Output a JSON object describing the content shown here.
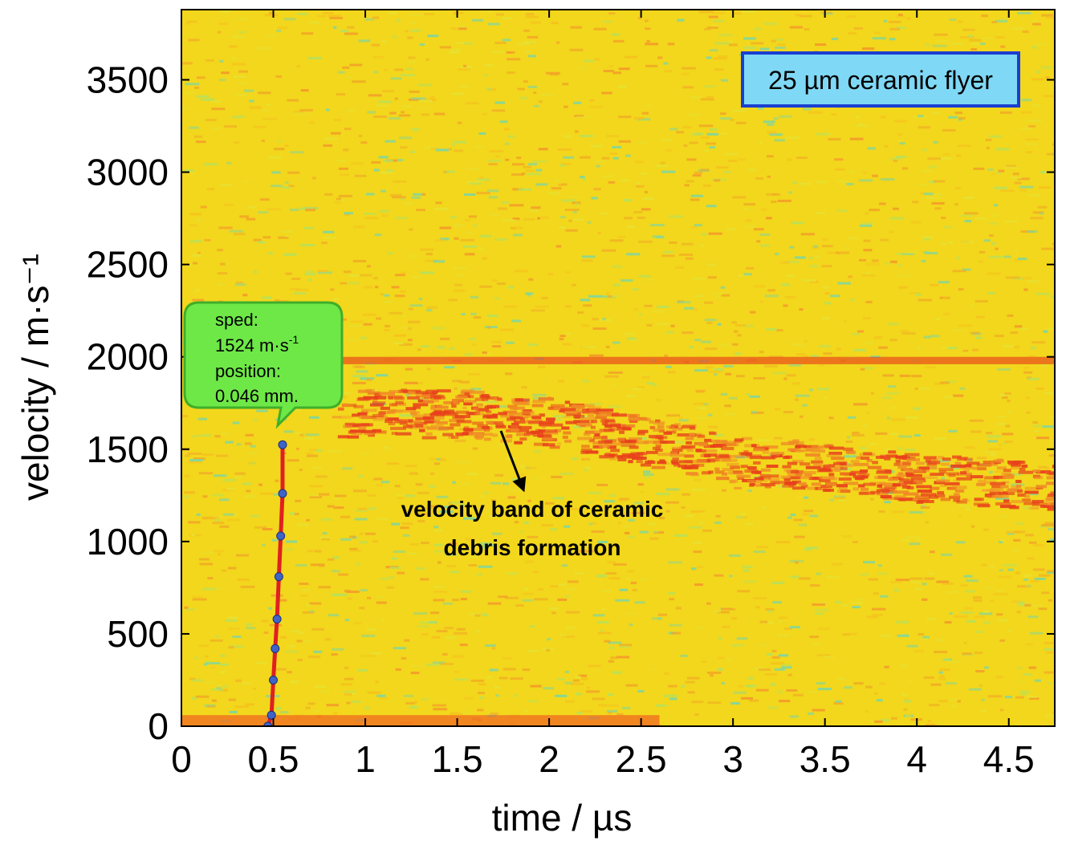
{
  "chart_data": {
    "type": "heatmap",
    "xlabel": "time / µs",
    "ylabel": "velocity / m·s⁻¹",
    "xlim": [
      0,
      4.75
    ],
    "ylim": [
      0,
      3880
    ],
    "x_ticks": [
      "0",
      "0.5",
      "1",
      "1.5",
      "2",
      "2.5",
      "3",
      "3.5",
      "4",
      "4.5"
    ],
    "y_ticks": [
      "0",
      "500",
      "1000",
      "1500",
      "2000",
      "2500",
      "3000",
      "3500"
    ],
    "legend_label": "25 µm ceramic flyer",
    "colors": {
      "background": "#f2d71c",
      "noise": [
        "#e8e030",
        "#f5c21d",
        "#f0a825",
        "#b8e05a",
        "#7fd6a0",
        "#f49a2a"
      ],
      "band": "#e8401c",
      "trace": "#e02020",
      "points": "#3e64c8",
      "callout_fill": "#6ee847",
      "callout_stroke": "#3fae2a",
      "legend_fill": "#7fd8f5",
      "legend_stroke": "#1a3fd1"
    },
    "trace_points": [
      {
        "t": 0.47,
        "v": 0
      },
      {
        "t": 0.49,
        "v": 60
      },
      {
        "t": 0.5,
        "v": 250
      },
      {
        "t": 0.51,
        "v": 420
      },
      {
        "t": 0.52,
        "v": 580
      },
      {
        "t": 0.53,
        "v": 810
      },
      {
        "t": 0.54,
        "v": 1030
      },
      {
        "t": 0.55,
        "v": 1260
      },
      {
        "t": 0.55,
        "v": 1524
      }
    ],
    "debris_band": [
      {
        "t": 0.85,
        "v": 1980
      },
      {
        "t": 4.75,
        "v": 1980
      }
    ],
    "debris_band_region": [
      {
        "t": 0.85,
        "v": 1700
      },
      {
        "t": 1.5,
        "v": 1700
      },
      {
        "t": 2.0,
        "v": 1650
      },
      {
        "t": 2.5,
        "v": 1550
      },
      {
        "t": 3.0,
        "v": 1450
      },
      {
        "t": 3.5,
        "v": 1400
      },
      {
        "t": 4.0,
        "v": 1350
      },
      {
        "t": 4.75,
        "v": 1300
      }
    ],
    "callout": {
      "line1": "sped:",
      "line2_value": "1524 m·s",
      "line2_sup": "-1",
      "line3": "position:",
      "line4": "0.046 mm."
    },
    "annotation": {
      "line1": "velocity band of ceramic",
      "line2": "debris formation"
    }
  }
}
